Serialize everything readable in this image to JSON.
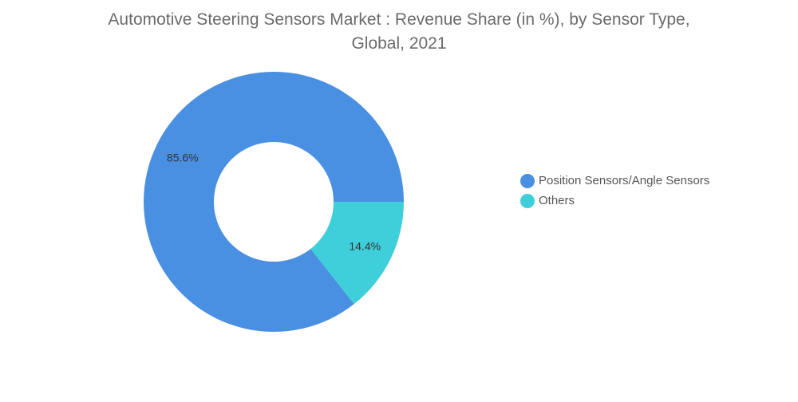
{
  "chart_data": {
    "type": "pie",
    "title_lines": [
      "Automotive Steering Sensors Market : Revenue Share (in %), by Sensor Type,",
      "Global, 2021"
    ],
    "slices": [
      {
        "name": "Position Sensors/Angle Sensors",
        "value": 85.6,
        "label": "85.6%",
        "color": "#4a90e2"
      },
      {
        "name": "Others",
        "value": 14.4,
        "label": "14.4%",
        "color": "#3ecfda"
      }
    ],
    "donut": true,
    "legend_position": "right"
  }
}
